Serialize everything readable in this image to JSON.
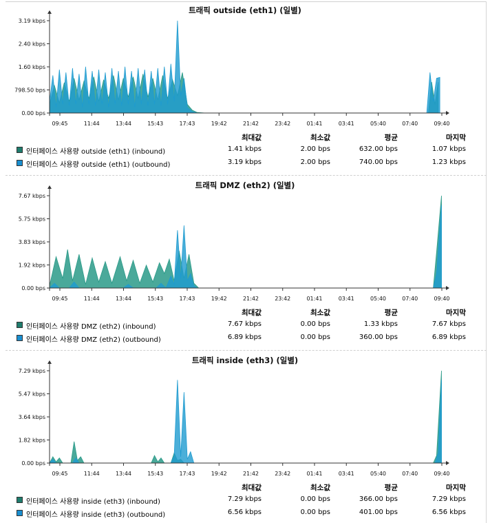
{
  "colors": {
    "inbound": "#2a9a88",
    "outbound": "#1e9bd0",
    "inbound_swatch": "#1f7d6e",
    "outbound_swatch": "#1a8fd0"
  },
  "stat_headers": [
    "최대값",
    "최소값",
    "평균",
    "마지막"
  ],
  "x_ticks": [
    "09:45",
    "11:44",
    "13:44",
    "15:43",
    "17:43",
    "19:42",
    "21:42",
    "23:42",
    "01:41",
    "03:41",
    "05:40",
    "07:40",
    "09:40"
  ],
  "panels": [
    {
      "title": "트래픽 outside (eth1) (일별)",
      "rows": [
        {
          "label": "인터페이스 사용량 outside (eth1) (inbound)",
          "max": "1.41 kbps",
          "min": "2.00 bps",
          "avg": "632.00 bps",
          "last": "1.07 kbps"
        },
        {
          "label": "인터페이스 사용량 outside (eth1) (outbound)",
          "max": "3.19 kbps",
          "min": "2.00 bps",
          "avg": "740.00 bps",
          "last": "1.23 kbps"
        }
      ]
    },
    {
      "title": "트래픽 DMZ (eth2) (일별)",
      "rows": [
        {
          "label": "인터페이스 사용량 DMZ (eth2) (inbound)",
          "max": "7.67 kbps",
          "min": "0.00 bps",
          "avg": "1.33 kbps",
          "last": "7.67 kbps"
        },
        {
          "label": "인터페이스 사용량 DMZ (eth2) (outbound)",
          "max": "6.89 kbps",
          "min": "0.00 bps",
          "avg": "360.00 bps",
          "last": "6.89 kbps"
        }
      ]
    },
    {
      "title": "트래픽 inside (eth3) (일별)",
      "rows": [
        {
          "label": "인터페이스 사용량 inside (eth3) (inbound)",
          "max": "7.29 kbps",
          "min": "0.00 bps",
          "avg": "366.00 bps",
          "last": "7.29 kbps"
        },
        {
          "label": "인터페이스 사용량 inside (eth3) (outbound)",
          "max": "6.56 kbps",
          "min": "0.00 bps",
          "avg": "401.00 bps",
          "last": "6.56 kbps"
        }
      ]
    }
  ],
  "chart_data": [
    {
      "type": "area",
      "title": "트래픽 outside (eth1) (일별)",
      "y_ticks": [
        "3.19 kbps",
        "2.40 kbps",
        "1.60 kbps",
        "798.50 bps",
        "0.00 bps"
      ],
      "ylim": [
        0,
        3.19
      ],
      "y_unit": "kbps",
      "x_unit": "hours from 09:45",
      "xlim": [
        0,
        23.92
      ],
      "series": [
        {
          "name": "인터페이스 사용량 outside (eth1) (inbound)",
          "points": [
            [
              0,
              0.3
            ],
            [
              0.3,
              0.95
            ],
            [
              0.6,
              0.35
            ],
            [
              0.9,
              1.05
            ],
            [
              1.2,
              0.4
            ],
            [
              1.5,
              1.2
            ],
            [
              1.8,
              0.45
            ],
            [
              2.1,
              1.1
            ],
            [
              2.4,
              0.5
            ],
            [
              2.7,
              1.25
            ],
            [
              3.0,
              0.4
            ],
            [
              3.3,
              1.15
            ],
            [
              3.6,
              0.5
            ],
            [
              3.9,
              1.3
            ],
            [
              4.2,
              0.45
            ],
            [
              4.5,
              1.2
            ],
            [
              4.8,
              0.55
            ],
            [
              5.1,
              1.25
            ],
            [
              5.4,
              0.5
            ],
            [
              5.7,
              1.35
            ],
            [
              6.0,
              0.55
            ],
            [
              6.3,
              1.2
            ],
            [
              6.6,
              0.45
            ],
            [
              6.9,
              1.3
            ],
            [
              7.2,
              0.5
            ],
            [
              7.5,
              1.15
            ],
            [
              7.8,
              0.6
            ],
            [
              8.1,
              1.4
            ],
            [
              8.4,
              0.3
            ],
            [
              8.7,
              0.1
            ],
            [
              9.0,
              0.02
            ],
            [
              9.5,
              0.0
            ],
            [
              23.1,
              0.0
            ],
            [
              23.3,
              1.07
            ],
            [
              23.5,
              0.3
            ],
            [
              23.7,
              1.07
            ]
          ]
        },
        {
          "name": "인터페이스 사용량 outside (eth1) (outbound)",
          "points": [
            [
              0,
              0.4
            ],
            [
              0.2,
              1.3
            ],
            [
              0.4,
              0.2
            ],
            [
              0.6,
              1.5
            ],
            [
              0.8,
              0.3
            ],
            [
              1.0,
              1.4
            ],
            [
              1.2,
              0.25
            ],
            [
              1.4,
              1.55
            ],
            [
              1.6,
              0.3
            ],
            [
              1.8,
              1.35
            ],
            [
              2.0,
              0.2
            ],
            [
              2.2,
              1.6
            ],
            [
              2.4,
              0.3
            ],
            [
              2.6,
              1.45
            ],
            [
              2.8,
              0.25
            ],
            [
              3.0,
              1.5
            ],
            [
              3.2,
              0.3
            ],
            [
              3.4,
              1.4
            ],
            [
              3.6,
              0.2
            ],
            [
              3.8,
              1.55
            ],
            [
              4.0,
              0.3
            ],
            [
              4.2,
              1.45
            ],
            [
              4.4,
              0.25
            ],
            [
              4.6,
              1.6
            ],
            [
              4.8,
              0.3
            ],
            [
              5.0,
              1.45
            ],
            [
              5.2,
              0.2
            ],
            [
              5.4,
              1.55
            ],
            [
              5.6,
              0.3
            ],
            [
              5.8,
              1.5
            ],
            [
              6.0,
              0.25
            ],
            [
              6.2,
              1.45
            ],
            [
              6.4,
              0.3
            ],
            [
              6.6,
              1.55
            ],
            [
              6.8,
              0.25
            ],
            [
              7.0,
              1.6
            ],
            [
              7.2,
              0.3
            ],
            [
              7.4,
              1.7
            ],
            [
              7.6,
              0.4
            ],
            [
              7.8,
              3.19
            ],
            [
              8.0,
              0.6
            ],
            [
              8.2,
              1.2
            ],
            [
              8.4,
              0.2
            ],
            [
              8.7,
              0.05
            ],
            [
              9.0,
              0.0
            ],
            [
              23.0,
              0.0
            ],
            [
              23.2,
              1.4
            ],
            [
              23.4,
              0.4
            ],
            [
              23.6,
              1.2
            ],
            [
              23.8,
              1.23
            ]
          ]
        }
      ]
    },
    {
      "type": "area",
      "title": "트래픽 DMZ (eth2) (일별)",
      "y_ticks": [
        "7.67 kbps",
        "5.75 kbps",
        "3.83 kbps",
        "1.92 kbps",
        "0.00 bps"
      ],
      "ylim": [
        0,
        7.67
      ],
      "y_unit": "kbps",
      "x_unit": "hours from 09:45",
      "xlim": [
        0,
        23.92
      ],
      "series": [
        {
          "name": "인터페이스 사용량 DMZ (eth2) (inbound)",
          "points": [
            [
              0,
              0.2
            ],
            [
              0.4,
              2.6
            ],
            [
              0.8,
              0.8
            ],
            [
              1.1,
              3.2
            ],
            [
              1.4,
              0.6
            ],
            [
              1.8,
              2.8
            ],
            [
              2.2,
              0.3
            ],
            [
              2.6,
              2.5
            ],
            [
              3.0,
              0.5
            ],
            [
              3.4,
              2.2
            ],
            [
              3.8,
              0.4
            ],
            [
              4.3,
              2.6
            ],
            [
              4.7,
              0.6
            ],
            [
              5.1,
              2.3
            ],
            [
              5.5,
              0.4
            ],
            [
              5.9,
              1.9
            ],
            [
              6.3,
              0.5
            ],
            [
              6.7,
              2.1
            ],
            [
              7.0,
              1.2
            ],
            [
              7.3,
              2.4
            ],
            [
              7.6,
              0.6
            ],
            [
              7.9,
              3.1
            ],
            [
              8.2,
              0.8
            ],
            [
              8.5,
              2.8
            ],
            [
              8.8,
              0.4
            ],
            [
              9.1,
              0.0
            ],
            [
              23.4,
              0.0
            ],
            [
              23.6,
              3.0
            ],
            [
              23.9,
              7.67
            ]
          ]
        },
        {
          "name": "인터페이스 사용량 DMZ (eth2) (outbound)",
          "points": [
            [
              0,
              0.0
            ],
            [
              0.3,
              0.4
            ],
            [
              0.6,
              0.0
            ],
            [
              1.2,
              0.0
            ],
            [
              1.5,
              0.5
            ],
            [
              1.8,
              0.0
            ],
            [
              4.5,
              0.0
            ],
            [
              4.8,
              0.3
            ],
            [
              5.1,
              0.0
            ],
            [
              6.5,
              0.0
            ],
            [
              6.8,
              0.4
            ],
            [
              7.1,
              0.0
            ],
            [
              7.4,
              1.0
            ],
            [
              7.6,
              0.3
            ],
            [
              7.8,
              4.8
            ],
            [
              8.0,
              0.8
            ],
            [
              8.2,
              5.2
            ],
            [
              8.4,
              0.6
            ],
            [
              8.6,
              1.2
            ],
            [
              8.8,
              0.2
            ],
            [
              9.0,
              0.0
            ],
            [
              23.4,
              0.0
            ],
            [
              23.6,
              1.2
            ],
            [
              23.9,
              6.89
            ]
          ]
        }
      ]
    },
    {
      "type": "area",
      "title": "트래픽 inside (eth3) (일별)",
      "y_ticks": [
        "7.29 kbps",
        "5.47 kbps",
        "3.64 kbps",
        "1.82 kbps",
        "0.00 bps"
      ],
      "ylim": [
        0,
        7.29
      ],
      "y_unit": "kbps",
      "x_unit": "hours from 09:45",
      "xlim": [
        0,
        23.92
      ],
      "series": [
        {
          "name": "인터페이스 사용량 inside (eth3) (inbound)",
          "points": [
            [
              0,
              0.0
            ],
            [
              0.2,
              0.5
            ],
            [
              0.4,
              0.1
            ],
            [
              0.6,
              0.4
            ],
            [
              0.8,
              0.0
            ],
            [
              1.3,
              0.0
            ],
            [
              1.5,
              1.7
            ],
            [
              1.7,
              0.2
            ],
            [
              1.9,
              0.5
            ],
            [
              2.1,
              0.0
            ],
            [
              6.2,
              0.0
            ],
            [
              6.4,
              0.6
            ],
            [
              6.6,
              0.1
            ],
            [
              6.8,
              0.4
            ],
            [
              7.0,
              0.0
            ],
            [
              7.4,
              0.0
            ],
            [
              7.6,
              0.8
            ],
            [
              7.8,
              0.2
            ],
            [
              8.0,
              0.3
            ],
            [
              8.2,
              0.0
            ],
            [
              23.4,
              0.0
            ],
            [
              23.6,
              0.6
            ],
            [
              23.9,
              7.29
            ]
          ]
        },
        {
          "name": "인터페이스 사용량 inside (eth3) (outbound)",
          "points": [
            [
              0,
              0.0
            ],
            [
              0.2,
              0.3
            ],
            [
              0.4,
              0.0
            ],
            [
              1.4,
              0.0
            ],
            [
              1.6,
              0.4
            ],
            [
              1.8,
              0.0
            ],
            [
              7.4,
              0.0
            ],
            [
              7.6,
              0.6
            ],
            [
              7.8,
              6.56
            ],
            [
              8.0,
              0.5
            ],
            [
              8.2,
              5.6
            ],
            [
              8.4,
              0.3
            ],
            [
              8.6,
              0.9
            ],
            [
              8.8,
              0.0
            ],
            [
              23.5,
              0.0
            ],
            [
              23.7,
              0.8
            ],
            [
              23.9,
              6.56
            ]
          ]
        }
      ]
    }
  ]
}
